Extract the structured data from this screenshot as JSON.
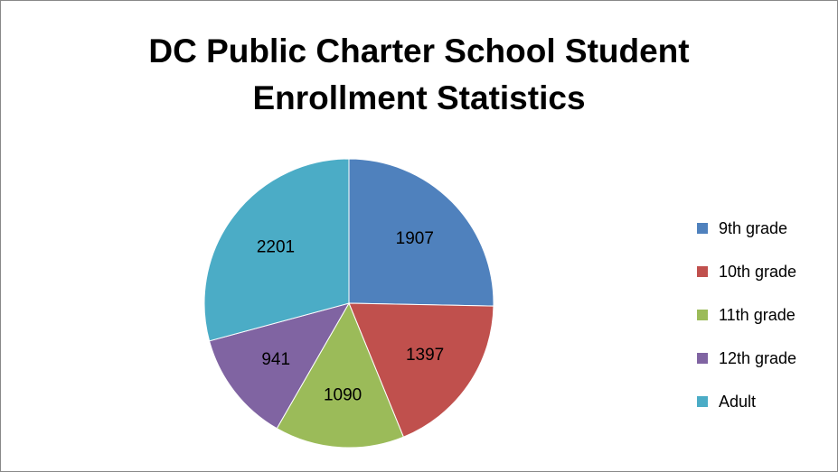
{
  "chart_data": {
    "type": "pie",
    "title": "DC Public Charter School Student Enrollment Statistics",
    "title_lines": [
      "DC Public Charter School Student",
      "Enrollment Statistics"
    ],
    "categories": [
      "9th grade",
      "10th grade",
      "11th grade",
      "12th grade",
      "Adult"
    ],
    "values": [
      1907,
      1397,
      1090,
      941,
      2201
    ],
    "colors": [
      "#4F81BD",
      "#C0504D",
      "#9BBB59",
      "#8064A2",
      "#4BACC6"
    ],
    "legend_position": "right",
    "data_labels": true
  }
}
